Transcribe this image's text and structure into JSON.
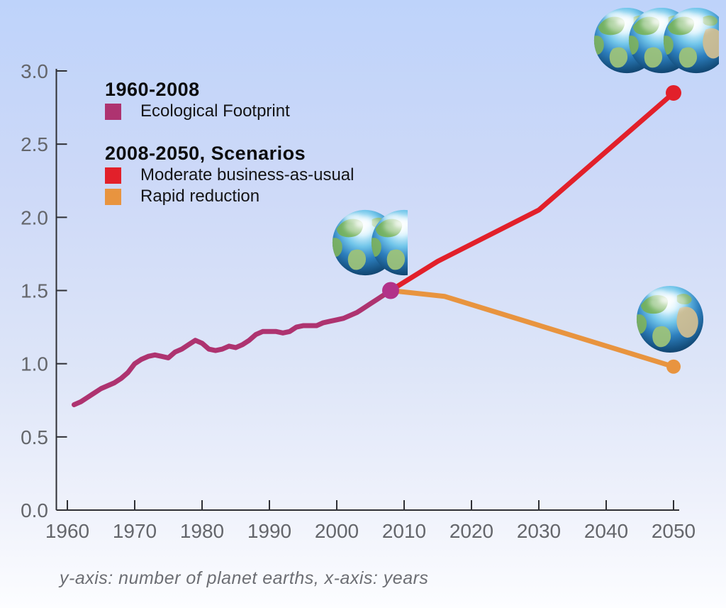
{
  "caption": "y-axis: number of planet earths, x-axis: years",
  "legend": {
    "historical": {
      "title": "1960-2008",
      "items": [
        {
          "label": "Ecological Footprint",
          "color": "#ae3370"
        }
      ]
    },
    "scenarios": {
      "title": "2008-2050, Scenarios",
      "items": [
        {
          "label": "Moderate business-as-usual",
          "color": "#e2202a"
        },
        {
          "label": "Rapid reduction",
          "color": "#e8943f"
        }
      ]
    }
  },
  "colors": {
    "background_top": "#bed3fa",
    "background_bottom": "#fcfdff",
    "axis": "#2f3035",
    "tick_label": "#64666b",
    "legend_text": "#0c0c0e",
    "caption_text": "#6c6e74",
    "footprint_line": "#ae3370",
    "footprint_marker": "#b23189",
    "moderate_line": "#e2202a",
    "rapid_line": "#e8943f"
  },
  "chart_data": {
    "type": "line",
    "title": "",
    "xlabel": "years",
    "ylabel": "number of planet earths",
    "xlim": [
      1960,
      2050
    ],
    "ylim": [
      0.0,
      3.0
    ],
    "grid": false,
    "legend_position": "top-left",
    "x_ticks": [
      1960,
      1970,
      1980,
      1990,
      2000,
      2010,
      2020,
      2030,
      2040,
      2050
    ],
    "x_tick_labels": [
      "1960",
      "1970",
      "1980",
      "1990",
      "2000",
      "2010",
      "2020",
      "2030",
      "2040",
      "2050"
    ],
    "y_ticks": [
      0.0,
      0.5,
      1.0,
      1.5,
      2.0,
      2.5,
      3.0
    ],
    "y_tick_labels": [
      "0.0",
      "0.5",
      "1.0",
      "1.5",
      "2.0",
      "2.5",
      "3.0"
    ],
    "series": [
      {
        "name": "Ecological Footprint",
        "period": "1960-2008",
        "color": "#ae3370",
        "width": 7,
        "points": [
          [
            1961,
            0.72
          ],
          [
            1962,
            0.74
          ],
          [
            1963,
            0.77
          ],
          [
            1964,
            0.8
          ],
          [
            1965,
            0.83
          ],
          [
            1966,
            0.85
          ],
          [
            1967,
            0.87
          ],
          [
            1968,
            0.9
          ],
          [
            1969,
            0.94
          ],
          [
            1970,
            1.0
          ],
          [
            1971,
            1.03
          ],
          [
            1972,
            1.05
          ],
          [
            1973,
            1.06
          ],
          [
            1974,
            1.05
          ],
          [
            1975,
            1.04
          ],
          [
            1976,
            1.08
          ],
          [
            1977,
            1.1
          ],
          [
            1978,
            1.13
          ],
          [
            1979,
            1.16
          ],
          [
            1980,
            1.14
          ],
          [
            1981,
            1.1
          ],
          [
            1982,
            1.09
          ],
          [
            1983,
            1.1
          ],
          [
            1984,
            1.12
          ],
          [
            1985,
            1.11
          ],
          [
            1986,
            1.13
          ],
          [
            1987,
            1.16
          ],
          [
            1988,
            1.2
          ],
          [
            1989,
            1.22
          ],
          [
            1990,
            1.22
          ],
          [
            1991,
            1.22
          ],
          [
            1992,
            1.21
          ],
          [
            1993,
            1.22
          ],
          [
            1994,
            1.25
          ],
          [
            1995,
            1.26
          ],
          [
            1996,
            1.26
          ],
          [
            1997,
            1.26
          ],
          [
            1998,
            1.28
          ],
          [
            1999,
            1.29
          ],
          [
            2000,
            1.3
          ],
          [
            2001,
            1.31
          ],
          [
            2002,
            1.33
          ],
          [
            2003,
            1.35
          ],
          [
            2004,
            1.38
          ],
          [
            2005,
            1.41
          ],
          [
            2006,
            1.44
          ],
          [
            2007,
            1.47
          ],
          [
            2008,
            1.5
          ]
        ]
      },
      {
        "name": "Moderate business-as-usual",
        "period": "2008-2050",
        "color": "#e2202a",
        "width": 7,
        "points": [
          [
            2008,
            1.5
          ],
          [
            2015,
            1.7
          ],
          [
            2030,
            2.05
          ],
          [
            2050,
            2.85
          ]
        ]
      },
      {
        "name": "Rapid reduction",
        "period": "2008-2050",
        "color": "#e8943f",
        "width": 7,
        "points": [
          [
            2008,
            1.5
          ],
          [
            2016,
            1.46
          ],
          [
            2050,
            0.98
          ]
        ]
      }
    ],
    "markers": [
      {
        "name": "footprint-2008-marker",
        "x": 2008,
        "y": 1.5,
        "r": 12,
        "color": "#b23189"
      },
      {
        "name": "moderate-2050-marker",
        "x": 2050,
        "y": 2.85,
        "r": 11,
        "color": "#e2202a"
      },
      {
        "name": "rapid-2050-marker",
        "x": 2050,
        "y": 0.98,
        "r": 10,
        "color": "#e8943f"
      }
    ],
    "illustrations": [
      {
        "name": "three-earths",
        "depicts": "three overlapping planet earths",
        "anchor": "moderate scenario endpoint 2050 (~2.85 planets)"
      },
      {
        "name": "one-and-half-earths",
        "depicts": "one and a half planet earths",
        "anchor": "ecological footprint 2008 (~1.5 planets)"
      },
      {
        "name": "one-earth",
        "depicts": "one planet earth",
        "anchor": "rapid reduction endpoint 2050 (~1 planet)"
      }
    ]
  }
}
